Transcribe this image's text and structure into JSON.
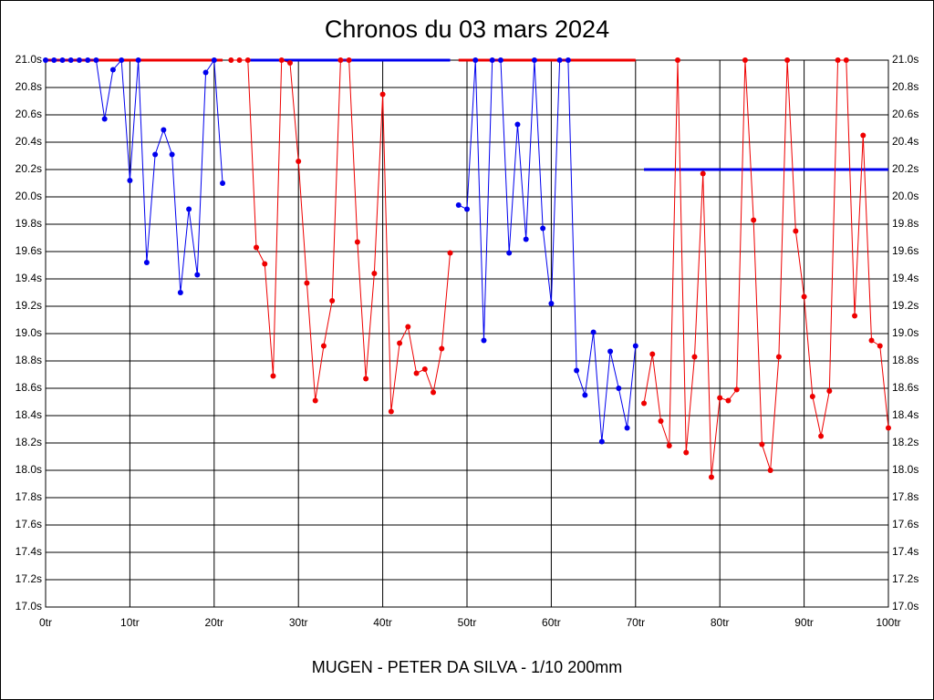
{
  "chart_data": {
    "type": "line",
    "title": "Chronos du 03 mars 2024",
    "xlabel": "MUGEN - PETER DA SILVA - 1/10 200mm",
    "x": [
      0,
      1,
      2,
      3,
      4,
      5,
      6,
      7,
      8,
      9,
      10,
      11,
      12,
      13,
      14,
      15,
      16,
      17,
      18,
      19,
      20,
      21,
      22,
      23,
      24,
      25,
      26,
      27,
      28,
      29,
      30,
      31,
      32,
      33,
      34,
      35,
      36,
      37,
      38,
      39,
      40,
      41,
      42,
      43,
      44,
      45,
      46,
      47,
      48,
      49,
      50,
      51,
      52,
      53,
      54,
      55,
      56,
      57,
      58,
      59,
      60,
      61,
      62,
      63,
      64,
      65,
      66,
      67,
      68,
      69,
      70,
      71,
      72,
      73,
      74,
      75,
      76,
      77,
      78,
      79,
      80,
      81,
      82,
      83,
      84,
      85,
      86,
      87,
      88,
      89,
      90,
      91,
      92,
      93,
      94,
      95,
      96,
      97,
      98,
      99,
      100
    ],
    "series": [
      {
        "color": "#0000ee",
        "values": [
          21.0,
          21.0,
          21.0,
          21.0,
          21.0,
          21.0,
          21.0,
          20.57,
          20.93,
          21.0,
          20.12,
          21.0,
          19.52,
          20.31,
          20.49,
          20.31,
          19.3,
          19.91,
          19.43,
          20.91,
          21.0,
          20.1,
          null,
          null,
          null,
          null,
          null,
          null,
          null,
          null,
          null,
          null,
          null,
          null,
          null,
          null,
          null,
          null,
          null,
          null,
          null,
          null,
          null,
          null,
          null,
          null,
          null,
          null,
          null,
          19.94,
          19.91,
          21.0,
          18.95,
          21.0,
          21.0,
          19.59,
          20.53,
          19.69,
          21.0,
          19.77,
          19.22,
          21.0,
          21.0,
          18.73,
          18.55,
          19.01,
          18.21,
          18.87,
          18.6,
          18.31,
          18.91,
          null,
          null,
          null,
          null,
          null,
          null,
          null,
          null,
          null,
          null,
          null,
          null,
          null,
          null,
          null,
          null,
          null,
          null,
          null,
          null,
          null,
          null,
          null,
          null,
          null,
          null,
          null,
          null,
          null,
          null
        ]
      },
      {
        "color": "#ee0000",
        "values": [
          null,
          null,
          null,
          null,
          null,
          null,
          null,
          null,
          null,
          null,
          null,
          null,
          null,
          null,
          null,
          null,
          null,
          null,
          null,
          null,
          null,
          null,
          21.0,
          21.0,
          21.0,
          19.63,
          19.51,
          18.69,
          21.0,
          20.98,
          20.26,
          19.37,
          18.51,
          18.91,
          19.24,
          21.0,
          21.0,
          19.67,
          18.67,
          19.44,
          20.75,
          18.43,
          18.93,
          19.05,
          18.71,
          18.74,
          18.57,
          18.89,
          19.59,
          null,
          null,
          null,
          null,
          null,
          null,
          null,
          null,
          null,
          null,
          null,
          null,
          null,
          null,
          null,
          null,
          null,
          null,
          null,
          null,
          null,
          null,
          18.49,
          18.85,
          18.36,
          18.18,
          21.0,
          18.13,
          18.83,
          20.17,
          17.95,
          18.53,
          18.51,
          18.59,
          21.0,
          19.83,
          18.19,
          18.0,
          18.83,
          21.0,
          19.75,
          19.27,
          18.54,
          18.25,
          18.58,
          21.0,
          21.0,
          19.13,
          20.45,
          18.95,
          18.91,
          18.31
        ]
      }
    ],
    "reference_lines": [
      {
        "x": [
          0,
          21
        ],
        "y": 21.0,
        "color": "#ee0000"
      },
      {
        "x": [
          24,
          48
        ],
        "y": 21.0,
        "color": "#0000ee"
      },
      {
        "x": [
          49,
          70
        ],
        "y": 21.0,
        "color": "#ee0000"
      },
      {
        "x": [
          71,
          100
        ],
        "y": 20.2,
        "color": "#0000ee"
      }
    ],
    "xlim": [
      0,
      100
    ],
    "ylim": [
      17.0,
      21.0
    ],
    "xticks": [
      {
        "value": 0,
        "label": "0tr"
      },
      {
        "value": 10,
        "label": "10tr"
      },
      {
        "value": 20,
        "label": "20tr"
      },
      {
        "value": 30,
        "label": "30tr"
      },
      {
        "value": 40,
        "label": "40tr"
      },
      {
        "value": 50,
        "label": "50tr"
      },
      {
        "value": 60,
        "label": "60tr"
      },
      {
        "value": 70,
        "label": "70tr"
      },
      {
        "value": 80,
        "label": "80tr"
      },
      {
        "value": 90,
        "label": "90tr"
      },
      {
        "value": 100,
        "label": "100tr"
      }
    ],
    "yticks": [
      {
        "value": 17.0,
        "label": "17.0s"
      },
      {
        "value": 17.2,
        "label": "17.2s"
      },
      {
        "value": 17.4,
        "label": "17.4s"
      },
      {
        "value": 17.6,
        "label": "17.6s"
      },
      {
        "value": 17.8,
        "label": "17.8s"
      },
      {
        "value": 18.0,
        "label": "18.0s"
      },
      {
        "value": 18.2,
        "label": "18.2s"
      },
      {
        "value": 18.4,
        "label": "18.4s"
      },
      {
        "value": 18.6,
        "label": "18.6s"
      },
      {
        "value": 18.8,
        "label": "18.8s"
      },
      {
        "value": 19.0,
        "label": "19.0s"
      },
      {
        "value": 19.2,
        "label": "19.2s"
      },
      {
        "value": 19.4,
        "label": "19.4s"
      },
      {
        "value": 19.6,
        "label": "19.6s"
      },
      {
        "value": 19.8,
        "label": "19.8s"
      },
      {
        "value": 20.0,
        "label": "20.0s"
      },
      {
        "value": 20.2,
        "label": "20.2s"
      },
      {
        "value": 20.4,
        "label": "20.4s"
      },
      {
        "value": 20.6,
        "label": "20.6s"
      },
      {
        "value": 20.8,
        "label": "20.8s"
      },
      {
        "value": 21.0,
        "label": "21.0s"
      }
    ],
    "grid": true
  }
}
